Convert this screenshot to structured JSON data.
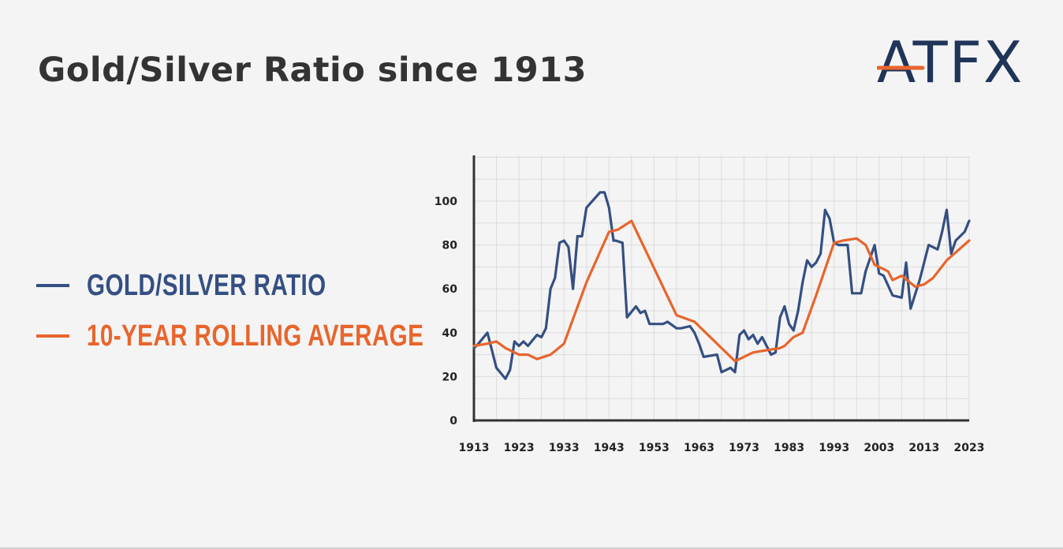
{
  "page": {
    "title": "Gold/Silver Ratio since 1913",
    "logo_text": "ATFX"
  },
  "colors": {
    "background": "#f4f4f4",
    "ratio": "#344f82",
    "average": "#e8652c",
    "axis": "#333333",
    "grid": "#dcdcdc"
  },
  "chart_data": {
    "type": "line",
    "title": "Gold/Silver Ratio since 1913",
    "xlabel": "",
    "ylabel": "",
    "xlim": [
      1913,
      2023
    ],
    "ylim": [
      0,
      120
    ],
    "grid": true,
    "legend_position": "left",
    "x_ticks": [
      1913,
      1923,
      1933,
      1943,
      1953,
      1963,
      1973,
      1983,
      1993,
      2003,
      2013,
      2023
    ],
    "y_ticks": [
      0,
      20,
      40,
      60,
      80,
      100
    ],
    "series": [
      {
        "name": "GOLD/SILVER RATIO",
        "color": "#344f82",
        "x": [
          1913,
          1914,
          1916,
          1918,
          1920,
          1921,
          1922,
          1923,
          1924,
          1925,
          1927,
          1928,
          1929,
          1930,
          1931,
          1932,
          1933,
          1934,
          1935,
          1936,
          1937,
          1938,
          1941,
          1942,
          1943,
          1944,
          1944.5,
          1946,
          1947,
          1949,
          1950,
          1951,
          1952,
          1953,
          1955,
          1956,
          1958,
          1959,
          1961,
          1962,
          1963,
          1964,
          1967,
          1968,
          1970,
          1971,
          1972,
          1973,
          1974,
          1975,
          1976,
          1977,
          1979,
          1980,
          1981,
          1982,
          1983,
          1984,
          1985,
          1986,
          1987,
          1988,
          1989,
          1990,
          1991,
          1992,
          1993,
          1994,
          1996,
          1997,
          1998,
          1999,
          2000,
          2002,
          2003,
          2004,
          2006,
          2008,
          2009,
          2010,
          2012,
          2014,
          2016,
          2017,
          2018,
          2019,
          2020,
          2022,
          2023
        ],
        "values": [
          33,
          35,
          40,
          24,
          19,
          23,
          36,
          34,
          36,
          34,
          39,
          38,
          42,
          60,
          65,
          81,
          82,
          79,
          60,
          84,
          84,
          97,
          104,
          104,
          97,
          82,
          82,
          81,
          47,
          52,
          49,
          50,
          44,
          44,
          44,
          45,
          42,
          42,
          43,
          40,
          35,
          29,
          30,
          22,
          24,
          22,
          39,
          41,
          37,
          39,
          35,
          38,
          30,
          31,
          47,
          52,
          44,
          41,
          50,
          63,
          73,
          70,
          72,
          76,
          96,
          92,
          81,
          80,
          80,
          58,
          58,
          58,
          68,
          80,
          67,
          66,
          57,
          56,
          72,
          51,
          64,
          80,
          78,
          86,
          96,
          76,
          82,
          86,
          91
        ]
      },
      {
        "name": "10-YEAR ROLLING AVERAGE",
        "color": "#e8652c",
        "x": [
          1913,
          1916,
          1918,
          1920,
          1923,
          1925,
          1927,
          1930,
          1933,
          1938,
          1943,
          1945,
          1948,
          1958,
          1962,
          1971,
          1973,
          1975,
          1978,
          1981,
          1982,
          1984,
          1986,
          1989,
          1991,
          1993,
          1995,
          1998,
          2000,
          2002,
          2003,
          2005,
          2006,
          2007,
          2008,
          2011,
          2013,
          2015,
          2018,
          2023
        ],
        "values": [
          34,
          35,
          36,
          33,
          30,
          30,
          28,
          30,
          35,
          63,
          86,
          87,
          91,
          48,
          45,
          27,
          29,
          31,
          32,
          33,
          34,
          38,
          40,
          57,
          69,
          81,
          82,
          83,
          80,
          71,
          70,
          68,
          64,
          65,
          66,
          61,
          62,
          65,
          73,
          82
        ]
      }
    ]
  }
}
